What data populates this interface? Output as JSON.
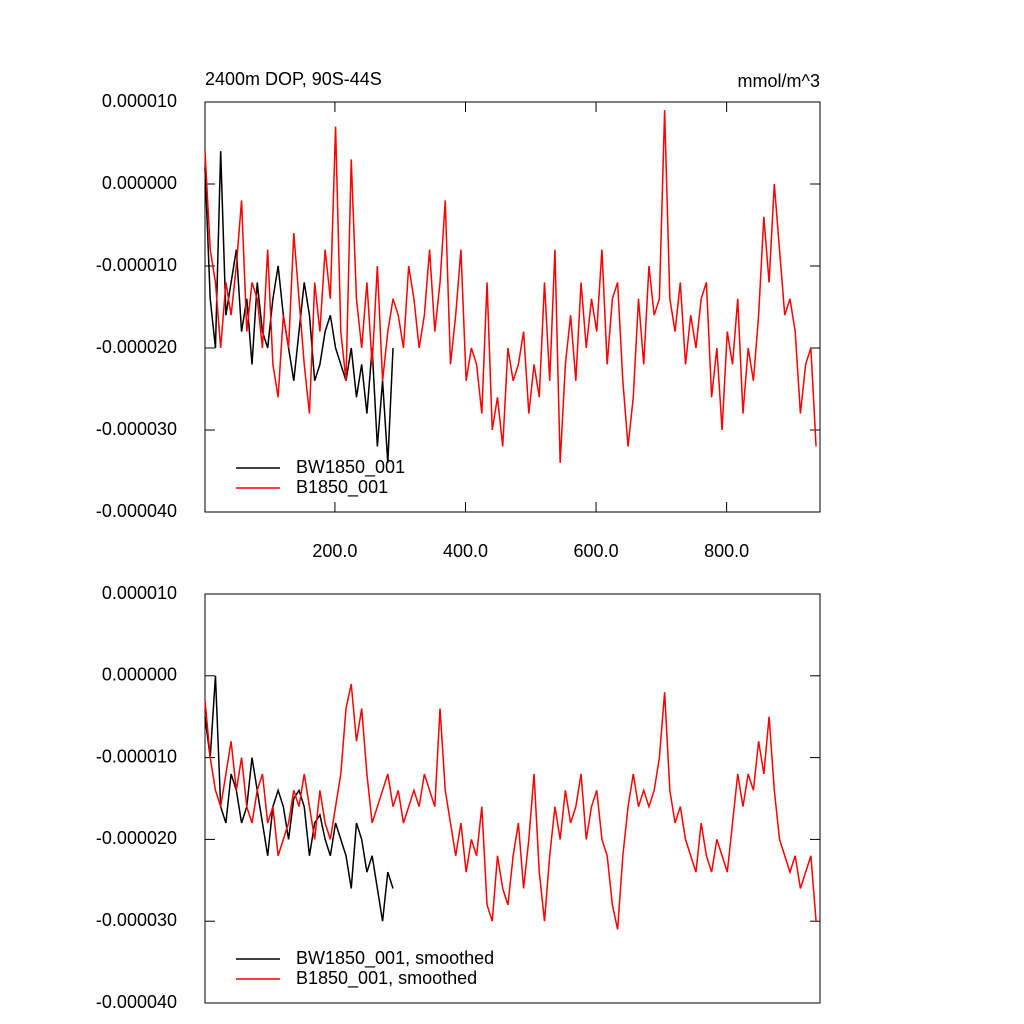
{
  "chart_data": [
    {
      "type": "line",
      "title": "2400m DOP, 90S-44S",
      "units": "mmol/m^3",
      "legend": "lower left",
      "x": [
        1,
        9,
        17,
        25,
        33,
        41,
        49,
        57,
        65,
        73,
        81,
        89,
        97,
        105,
        113,
        121,
        129,
        137,
        145,
        153,
        161,
        169,
        177,
        185,
        193,
        201,
        209,
        217,
        225,
        233,
        241,
        249,
        257,
        265,
        273,
        281,
        289,
        297,
        305,
        313,
        321,
        329,
        337,
        345,
        353,
        361,
        369,
        377,
        385,
        393,
        401,
        409,
        417,
        425,
        433,
        441,
        449,
        457,
        465,
        473,
        481,
        489,
        497,
        505,
        513,
        521,
        529,
        537,
        545,
        553,
        561,
        569,
        577,
        585,
        593,
        601,
        609,
        617,
        625,
        633,
        641,
        649,
        657,
        665,
        673,
        681,
        689,
        697,
        705,
        713,
        721,
        729,
        737,
        745,
        753,
        761,
        769,
        777,
        785,
        793,
        801,
        809,
        817,
        825,
        833,
        841,
        849,
        857,
        865,
        873,
        881,
        889,
        897,
        905,
        913,
        921,
        929,
        937
      ],
      "xlim": [
        1,
        943
      ],
      "xticks": [
        {
          "value": 200,
          "label": "200.0"
        },
        {
          "value": 400,
          "label": "400.0"
        },
        {
          "value": 600,
          "label": "600.0"
        },
        {
          "value": 800,
          "label": "800.0"
        }
      ],
      "ylim": [
        -4e-05,
        1e-05
      ],
      "yticks": [
        {
          "value": -4e-05,
          "label": "-0.000040"
        },
        {
          "value": -3e-05,
          "label": "-0.000030"
        },
        {
          "value": -2e-05,
          "label": "-0.000020"
        },
        {
          "value": -1e-05,
          "label": "-0.000010"
        },
        {
          "value": 0,
          "label": "0.000000"
        },
        {
          "value": 1e-05,
          "label": "0.000010"
        }
      ],
      "series": [
        {
          "name": "BW1850_001",
          "color": "#000000",
          "values": [
            2e-06,
            -1.4e-05,
            -2e-05,
            4e-06,
            -1.6e-05,
            -1.2e-05,
            -8e-06,
            -1.8e-05,
            -1.4e-05,
            -2.2e-05,
            -1.2e-05,
            -1.8e-05,
            -2e-05,
            -1.4e-05,
            -1e-05,
            -1.6e-05,
            -2e-05,
            -2.4e-05,
            -1.8e-05,
            -1.2e-05,
            -1.6e-05,
            -2.4e-05,
            -2.2e-05,
            -1.8e-05,
            -1.6e-05,
            -2e-05,
            -2.2e-05,
            -2.4e-05,
            -2e-05,
            -2.6e-05,
            -2.2e-05,
            -2.8e-05,
            -2e-05,
            -3.2e-05,
            -2.4e-05,
            -3.4e-05,
            -2e-05,
            null,
            null,
            null,
            null,
            null,
            null,
            null,
            null,
            null,
            null,
            null,
            null,
            null,
            null,
            null,
            null,
            null,
            null,
            null,
            null,
            null,
            null,
            null,
            null,
            null,
            null,
            null,
            null,
            null,
            null,
            null,
            null,
            null,
            null,
            null,
            null,
            null,
            null,
            null,
            null,
            null,
            null,
            null,
            null,
            null,
            null,
            null,
            null,
            null,
            null,
            null,
            null,
            null,
            null,
            null,
            null,
            null,
            null,
            null,
            null,
            null,
            null,
            null,
            null,
            null,
            null,
            null,
            null,
            null,
            null,
            null,
            null,
            null,
            null,
            null,
            null,
            null,
            null,
            null,
            null,
            null
          ]
        },
        {
          "name": "B1850_001",
          "color": "#ff0000",
          "values": [
            4e-06,
            -8e-06,
            -1.2e-05,
            -2e-05,
            -1.2e-05,
            -1.6e-05,
            -1e-05,
            -2e-06,
            -1.8e-05,
            -1.2e-05,
            -1.4e-05,
            -2e-05,
            -8e-06,
            -2.2e-05,
            -2.6e-05,
            -1.6e-05,
            -2e-05,
            -6e-06,
            -1.4e-05,
            -2.2e-05,
            -2.8e-05,
            -1.2e-05,
            -1.8e-05,
            -8e-06,
            -1.4e-05,
            7e-06,
            -1.8e-05,
            -2.4e-05,
            3e-06,
            -1.4e-05,
            -2e-05,
            -1.2e-05,
            -2.2e-05,
            -1e-05,
            -2.4e-05,
            -1.8e-05,
            -1.4e-05,
            -1.6e-05,
            -2e-05,
            -1e-05,
            -1.4e-05,
            -2e-05,
            -1.6e-05,
            -8e-06,
            -1.8e-05,
            -1.2e-05,
            -2e-06,
            -2.2e-05,
            -1.6e-05,
            -8e-06,
            -2.4e-05,
            -2e-05,
            -2.2e-05,
            -2.8e-05,
            -1.2e-05,
            -3e-05,
            -2.6e-05,
            -3.2e-05,
            -2e-05,
            -2.4e-05,
            -2.2e-05,
            -1.8e-05,
            -2.8e-05,
            -2.2e-05,
            -2.6e-05,
            -1.2e-05,
            -2.4e-05,
            -8e-06,
            -3.4e-05,
            -2.2e-05,
            -1.6e-05,
            -2.4e-05,
            -1.2e-05,
            -2e-05,
            -1.4e-05,
            -1.8e-05,
            -8e-06,
            -2.2e-05,
            -1.4e-05,
            -1.2e-05,
            -2.4e-05,
            -3.2e-05,
            -2.6e-05,
            -1.4e-05,
            -2.2e-05,
            -1e-05,
            -1.6e-05,
            -1.4e-05,
            9e-06,
            -1.4e-05,
            -1.8e-05,
            -1.2e-05,
            -2.2e-05,
            -1.6e-05,
            -2e-05,
            -1.4e-05,
            -1.2e-05,
            -2.6e-05,
            -2e-05,
            -3e-05,
            -1.8e-05,
            -2.2e-05,
            -1.4e-05,
            -2.8e-05,
            -2e-05,
            -2.4e-05,
            -1.6e-05,
            -4e-06,
            -1.2e-05,
            0,
            -8e-06,
            -1.6e-05,
            -1.4e-05,
            -1.8e-05,
            -2.8e-05,
            -2.2e-05,
            -2e-05,
            -3.2e-05
          ]
        }
      ]
    },
    {
      "type": "line",
      "legend": "lower left",
      "x": [
        1,
        9,
        17,
        25,
        33,
        41,
        49,
        57,
        65,
        73,
        81,
        89,
        97,
        105,
        113,
        121,
        129,
        137,
        145,
        153,
        161,
        169,
        177,
        185,
        193,
        201,
        209,
        217,
        225,
        233,
        241,
        249,
        257,
        265,
        273,
        281,
        289,
        297,
        305,
        313,
        321,
        329,
        337,
        345,
        353,
        361,
        369,
        377,
        385,
        393,
        401,
        409,
        417,
        425,
        433,
        441,
        449,
        457,
        465,
        473,
        481,
        489,
        497,
        505,
        513,
        521,
        529,
        537,
        545,
        553,
        561,
        569,
        577,
        585,
        593,
        601,
        609,
        617,
        625,
        633,
        641,
        649,
        657,
        665,
        673,
        681,
        689,
        697,
        705,
        713,
        721,
        729,
        737,
        745,
        753,
        761,
        769,
        777,
        785,
        793,
        801,
        809,
        817,
        825,
        833,
        841,
        849,
        857,
        865,
        873,
        881,
        889,
        897,
        905,
        913,
        921,
        929,
        937
      ],
      "xlim": [
        1,
        943
      ],
      "ylim": [
        -4e-05,
        1e-05
      ],
      "yticks": [
        {
          "value": -4e-05,
          "label": "-0.000040"
        },
        {
          "value": -3e-05,
          "label": "-0.000030"
        },
        {
          "value": -2e-05,
          "label": "-0.000020"
        },
        {
          "value": -1e-05,
          "label": "-0.000010"
        },
        {
          "value": 0,
          "label": "0.000000"
        },
        {
          "value": 1e-05,
          "label": "0.000010"
        }
      ],
      "series": [
        {
          "name": "BW1850_001, smoothed",
          "color": "#000000",
          "values": [
            -5e-06,
            -1e-05,
            0,
            -1.6e-05,
            -1.8e-05,
            -1.2e-05,
            -1.4e-05,
            -1.8e-05,
            -1.6e-05,
            -1e-05,
            -1.4e-05,
            -1.8e-05,
            -2.2e-05,
            -1.6e-05,
            -1.4e-05,
            -1.6e-05,
            -2e-05,
            -1.5e-05,
            -1.4e-05,
            -1.6e-05,
            -2.2e-05,
            -1.8e-05,
            -1.7e-05,
            -2e-05,
            -2.2e-05,
            -1.8e-05,
            -2e-05,
            -2.2e-05,
            -2.6e-05,
            -1.8e-05,
            -2e-05,
            -2.4e-05,
            -2.2e-05,
            -2.6e-05,
            -3e-05,
            -2.4e-05,
            -2.6e-05,
            null,
            null,
            null,
            null,
            null,
            null,
            null,
            null,
            null,
            null,
            null,
            null,
            null,
            null,
            null,
            null,
            null,
            null,
            null,
            null,
            null,
            null,
            null,
            null,
            null,
            null,
            null,
            null,
            null,
            null,
            null,
            null,
            null,
            null,
            null,
            null,
            null,
            null,
            null,
            null,
            null,
            null,
            null,
            null,
            null,
            null,
            null,
            null,
            null,
            null,
            null,
            null,
            null,
            null,
            null,
            null,
            null,
            null,
            null,
            null,
            null,
            null,
            null,
            null,
            null,
            null,
            null,
            null,
            null,
            null,
            null,
            null,
            null,
            null,
            null,
            null,
            null,
            null,
            null,
            null,
            null
          ]
        },
        {
          "name": "B1850_001, smoothed",
          "color": "#ff0000",
          "values": [
            -3e-06,
            -1e-05,
            -1.4e-05,
            -1.6e-05,
            -1.2e-05,
            -8e-06,
            -1.4e-05,
            -1e-05,
            -1.6e-05,
            -1.8e-05,
            -1.4e-05,
            -1.2e-05,
            -1.8e-05,
            -1.6e-05,
            -2.2e-05,
            -2e-05,
            -1.8e-05,
            -1.4e-05,
            -1.6e-05,
            -1.2e-05,
            -1.6e-05,
            -2e-05,
            -1.4e-05,
            -1.8e-05,
            -2e-05,
            -1.6e-05,
            -1.2e-05,
            -4e-06,
            -1e-06,
            -8e-06,
            -4e-06,
            -1.2e-05,
            -1.8e-05,
            -1.6e-05,
            -1.4e-05,
            -1.2e-05,
            -1.6e-05,
            -1.4e-05,
            -1.8e-05,
            -1.6e-05,
            -1.4e-05,
            -1.6e-05,
            -1.2e-05,
            -1.4e-05,
            -1.6e-05,
            -4e-06,
            -1.4e-05,
            -1.8e-05,
            -2.2e-05,
            -1.8e-05,
            -2.4e-05,
            -2e-05,
            -2.2e-05,
            -1.6e-05,
            -2.8e-05,
            -3e-05,
            -2.2e-05,
            -2.6e-05,
            -2.8e-05,
            -2.2e-05,
            -1.8e-05,
            -2.6e-05,
            -2e-05,
            -1.2e-05,
            -2.4e-05,
            -3e-05,
            -2.2e-05,
            -1.6e-05,
            -2e-05,
            -1.4e-05,
            -1.8e-05,
            -1.6e-05,
            -1.2e-05,
            -2e-05,
            -1.6e-05,
            -1.4e-05,
            -2e-05,
            -2.2e-05,
            -2.8e-05,
            -3.1e-05,
            -2.2e-05,
            -1.6e-05,
            -1.2e-05,
            -1.6e-05,
            -1.4e-05,
            -1.6e-05,
            -1.4e-05,
            -1e-05,
            -2e-06,
            -1.4e-05,
            -1.8e-05,
            -1.6e-05,
            -2e-05,
            -2.2e-05,
            -2.4e-05,
            -1.8e-05,
            -2.2e-05,
            -2.4e-05,
            -2e-05,
            -2.2e-05,
            -2.4e-05,
            -1.8e-05,
            -1.2e-05,
            -1.6e-05,
            -1.2e-05,
            -1.4e-05,
            -8e-06,
            -1.2e-05,
            -5e-06,
            -1.4e-05,
            -2e-05,
            -2.2e-05,
            -2.4e-05,
            -2.2e-05,
            -2.6e-05,
            -2.4e-05,
            -2.2e-05,
            -3e-05
          ]
        }
      ]
    }
  ]
}
